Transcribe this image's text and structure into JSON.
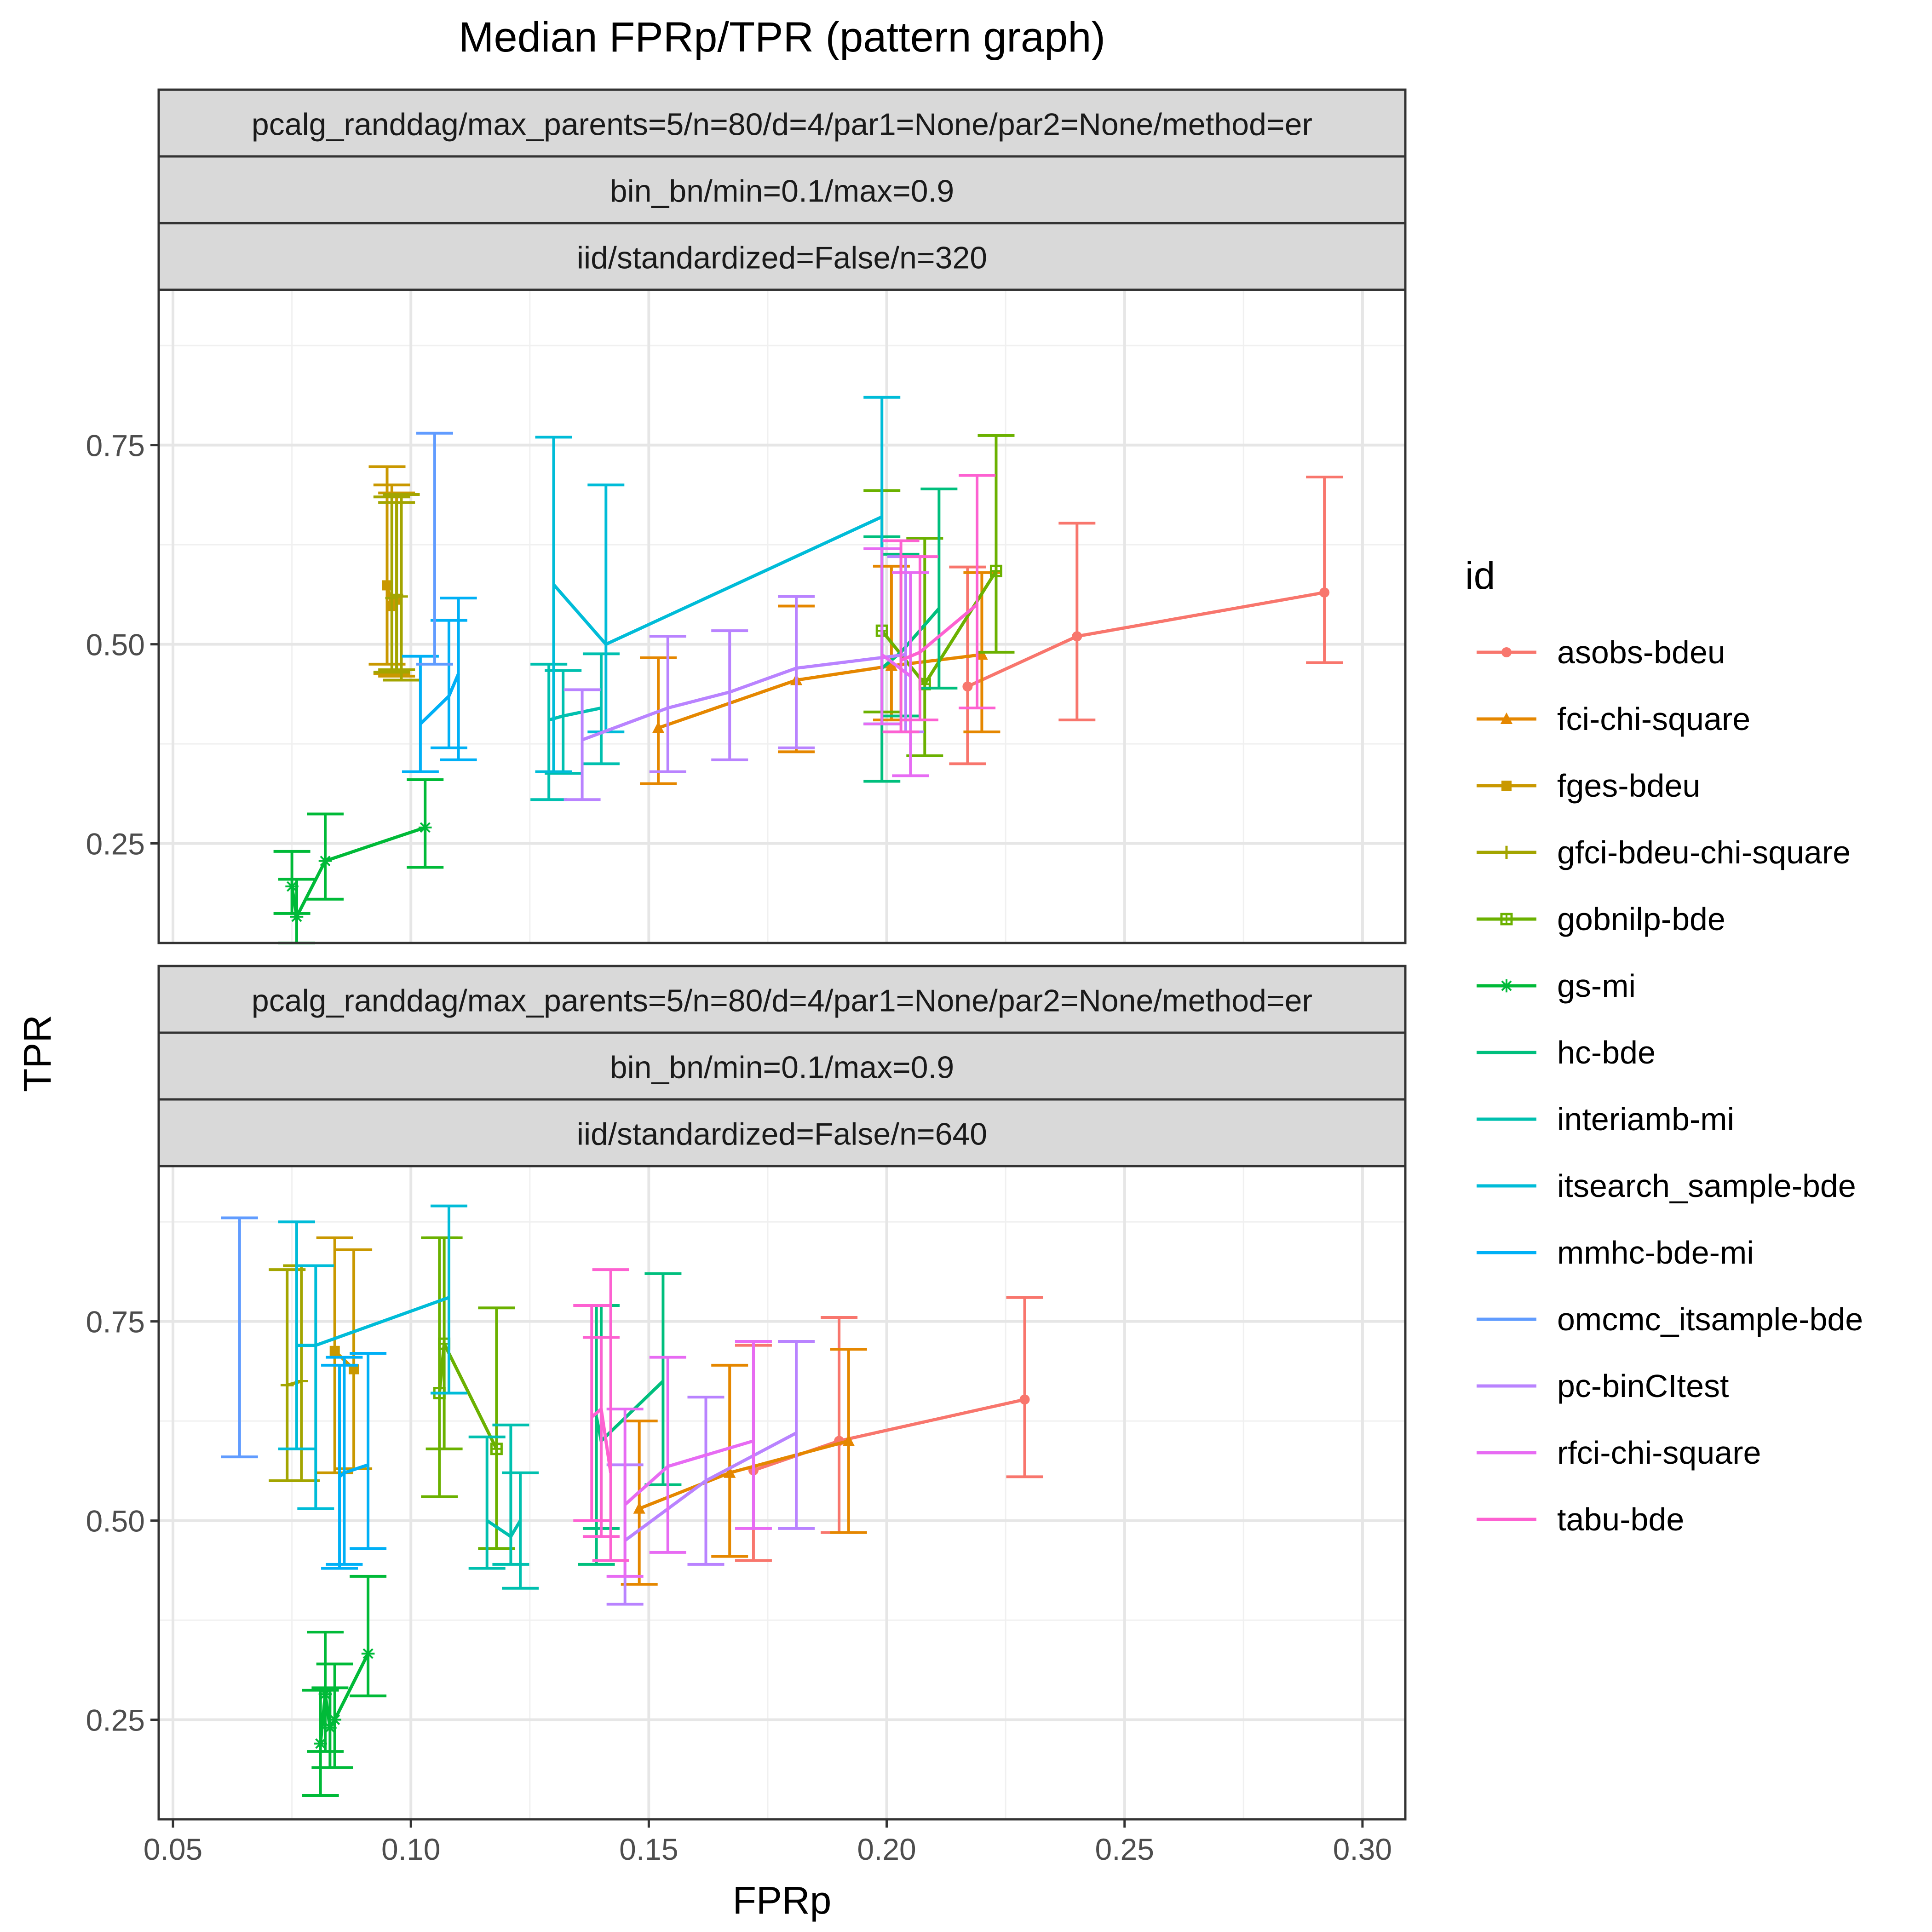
{
  "chart_data": {
    "title": "Median FPRp/TPR (pattern graph)",
    "xlabel": "FPRp",
    "ylabel": "TPR",
    "legend_title": "id",
    "legend_position": "right",
    "grid": true,
    "x_ticks": [
      "0.05",
      "0.10",
      "0.15",
      "0.20",
      "0.25",
      "0.30"
    ],
    "y_ticks": [
      "0.25",
      "0.50",
      "0.75"
    ],
    "xlim": [
      0.047,
      0.309
    ],
    "ylim": [
      0.125,
      0.945
    ],
    "series": [
      {
        "name": "asobs-bdeu",
        "color": "#F8766D",
        "marker": "circle"
      },
      {
        "name": "fci-chi-square",
        "color": "#E58700",
        "marker": "triangle"
      },
      {
        "name": "fges-bdeu",
        "color": "#C99800",
        "marker": "square"
      },
      {
        "name": "gfci-bdeu-chi-square",
        "color": "#A3A500",
        "marker": "plus"
      },
      {
        "name": "gobnilp-bde",
        "color": "#6BB100",
        "marker": "boxsquare"
      },
      {
        "name": "gs-mi",
        "color": "#00BA38",
        "marker": "asterisk"
      },
      {
        "name": "hc-bde",
        "color": "#00BF7D",
        "marker": "none"
      },
      {
        "name": "interiamb-mi",
        "color": "#00C0AF",
        "marker": "none"
      },
      {
        "name": "itsearch_sample-bde",
        "color": "#00BCD8",
        "marker": "none"
      },
      {
        "name": "mmhc-bde-mi",
        "color": "#00B0F6",
        "marker": "none"
      },
      {
        "name": "omcmc_itsample-bde",
        "color": "#619CFF",
        "marker": "none"
      },
      {
        "name": "pc-binCItest",
        "color": "#B983FF",
        "marker": "none"
      },
      {
        "name": "rfci-chi-square",
        "color": "#E76BF3",
        "marker": "none"
      },
      {
        "name": "tabu-bde",
        "color": "#FD61D1",
        "marker": "none"
      }
    ],
    "panels": [
      {
        "strips": [
          "pcalg_randdag/max_parents=5/n=80/d=4/par1=None/par2=None/method=er",
          "bin_bn/min=0.1/max=0.9",
          "iid/standardized=False/n=320"
        ],
        "lines": [
          {
            "series": 0,
            "points": [
              {
                "x": 0.217,
                "y": 0.447,
                "lo": 0.35,
                "hi": 0.597
              },
              {
                "x": 0.24,
                "y": 0.51,
                "lo": 0.405,
                "hi": 0.652
              },
              {
                "x": 0.292,
                "y": 0.565,
                "lo": 0.477,
                "hi": 0.71
              }
            ]
          },
          {
            "series": 1,
            "points": [
              {
                "x": 0.152,
                "y": 0.395,
                "lo": 0.325,
                "hi": 0.483
              },
              {
                "x": 0.181,
                "y": 0.455,
                "lo": 0.365,
                "hi": 0.548
              },
              {
                "x": 0.201,
                "y": 0.473,
                "lo": 0.405,
                "hi": 0.598
              },
              {
                "x": 0.22,
                "y": 0.487,
                "lo": 0.39,
                "hi": 0.59
              }
            ]
          },
          {
            "series": 2,
            "points": [
              {
                "x": 0.095,
                "y": 0.574,
                "lo": 0.475,
                "hi": 0.723
              },
              {
                "x": 0.096,
                "y": 0.548,
                "lo": 0.463,
                "hi": 0.7
              },
              {
                "x": 0.097,
                "y": 0.556,
                "lo": 0.46,
                "hi": 0.69
              }
            ]
          },
          {
            "series": 3,
            "points": [
              {
                "x": 0.096,
                "y": 0.558,
                "lo": 0.465,
                "hi": 0.685
              },
              {
                "x": 0.097,
                "y": 0.562,
                "lo": 0.468,
                "hi": 0.678
              },
              {
                "x": 0.098,
                "y": 0.56,
                "lo": 0.455,
                "hi": 0.688
              }
            ]
          },
          {
            "series": 4,
            "points": [
              {
                "x": 0.199,
                "y": 0.517,
                "lo": 0.415,
                "hi": 0.693
              },
              {
                "x": 0.208,
                "y": 0.45,
                "lo": 0.36,
                "hi": 0.633
              },
              {
                "x": 0.223,
                "y": 0.592,
                "lo": 0.49,
                "hi": 0.762
              }
            ]
          },
          {
            "series": 5,
            "points": [
              {
                "x": 0.075,
                "y": 0.196,
                "lo": 0.162,
                "hi": 0.24
              },
              {
                "x": 0.076,
                "y": 0.158,
                "lo": 0.125,
                "hi": 0.205
              },
              {
                "x": 0.082,
                "y": 0.228,
                "lo": 0.18,
                "hi": 0.287
              },
              {
                "x": 0.103,
                "y": 0.27,
                "lo": 0.22,
                "hi": 0.33
              }
            ]
          },
          {
            "series": 6,
            "points": [
              {
                "x": 0.199,
                "y": 0.47,
                "lo": 0.328,
                "hi": 0.635
              },
              {
                "x": 0.203,
                "y": 0.49,
                "lo": 0.41,
                "hi": 0.613
              },
              {
                "x": 0.211,
                "y": 0.545,
                "lo": 0.445,
                "hi": 0.695
              }
            ]
          },
          {
            "series": 7,
            "points": [
              {
                "x": 0.129,
                "y": 0.405,
                "lo": 0.305,
                "hi": 0.475
              },
              {
                "x": 0.132,
                "y": 0.41,
                "lo": 0.338,
                "hi": 0.467
              },
              {
                "x": 0.14,
                "y": 0.42,
                "lo": 0.35,
                "hi": 0.488
              }
            ]
          },
          {
            "series": 8,
            "points": [
              {
                "x": 0.13,
                "y": 0.575,
                "lo": 0.34,
                "hi": 0.76
              },
              {
                "x": 0.141,
                "y": 0.5,
                "lo": 0.39,
                "hi": 0.7
              },
              {
                "x": 0.199,
                "y": 0.66,
                "lo": 0.4,
                "hi": 0.81
              }
            ]
          },
          {
            "series": 9,
            "points": [
              {
                "x": 0.102,
                "y": 0.4,
                "lo": 0.34,
                "hi": 0.485
              },
              {
                "x": 0.108,
                "y": 0.435,
                "lo": 0.37,
                "hi": 0.53
              },
              {
                "x": 0.11,
                "y": 0.463,
                "lo": 0.355,
                "hi": 0.558
              }
            ]
          },
          {
            "series": 10,
            "points": [
              {
                "x": 0.105,
                "y": 0.57,
                "lo": 0.475,
                "hi": 0.765
              }
            ]
          },
          {
            "series": 11,
            "points": [
              {
                "x": 0.136,
                "y": 0.38,
                "lo": 0.305,
                "hi": 0.443
              },
              {
                "x": 0.154,
                "y": 0.42,
                "lo": 0.34,
                "hi": 0.51
              },
              {
                "x": 0.167,
                "y": 0.44,
                "lo": 0.355,
                "hi": 0.517
              },
              {
                "x": 0.181,
                "y": 0.47,
                "lo": 0.37,
                "hi": 0.56
              },
              {
                "x": 0.204,
                "y": 0.487,
                "lo": 0.39,
                "hi": 0.61
              }
            ]
          },
          {
            "series": 12,
            "points": [
              {
                "x": 0.199,
                "y": 0.487,
                "lo": 0.4,
                "hi": 0.62
              },
              {
                "x": 0.205,
                "y": 0.46,
                "lo": 0.335,
                "hi": 0.59
              }
            ]
          },
          {
            "series": 13,
            "points": [
              {
                "x": 0.203,
                "y": 0.48,
                "lo": 0.39,
                "hi": 0.63
              },
              {
                "x": 0.207,
                "y": 0.49,
                "lo": 0.405,
                "hi": 0.61
              },
              {
                "x": 0.219,
                "y": 0.55,
                "lo": 0.42,
                "hi": 0.712
              }
            ]
          }
        ]
      },
      {
        "strips": [
          "pcalg_randdag/max_parents=5/n=80/d=4/par1=None/par2=None/method=er",
          "bin_bn/min=0.1/max=0.9",
          "iid/standardized=False/n=640"
        ],
        "lines": [
          {
            "series": 0,
            "points": [
              {
                "x": 0.172,
                "y": 0.563,
                "lo": 0.45,
                "hi": 0.72
              },
              {
                "x": 0.19,
                "y": 0.6,
                "lo": 0.485,
                "hi": 0.755
              },
              {
                "x": 0.229,
                "y": 0.652,
                "lo": 0.555,
                "hi": 0.78
              }
            ]
          },
          {
            "series": 1,
            "points": [
              {
                "x": 0.148,
                "y": 0.515,
                "lo": 0.42,
                "hi": 0.625
              },
              {
                "x": 0.167,
                "y": 0.56,
                "lo": 0.455,
                "hi": 0.695
              },
              {
                "x": 0.192,
                "y": 0.6,
                "lo": 0.485,
                "hi": 0.715
              }
            ]
          },
          {
            "series": 2,
            "points": [
              {
                "x": 0.084,
                "y": 0.713,
                "lo": 0.56,
                "hi": 0.855
              },
              {
                "x": 0.088,
                "y": 0.69,
                "lo": 0.565,
                "hi": 0.84
              }
            ]
          },
          {
            "series": 3,
            "points": [
              {
                "x": 0.074,
                "y": 0.67,
                "lo": 0.55,
                "hi": 0.815
              },
              {
                "x": 0.077,
                "y": 0.675,
                "lo": 0.55,
                "hi": 0.82
              }
            ]
          },
          {
            "series": 4,
            "points": [
              {
                "x": 0.106,
                "y": 0.66,
                "lo": 0.53,
                "hi": 0.855
              },
              {
                "x": 0.107,
                "y": 0.722,
                "lo": 0.59,
                "hi": 0.855
              },
              {
                "x": 0.118,
                "y": 0.59,
                "lo": 0.465,
                "hi": 0.767
              }
            ]
          },
          {
            "series": 5,
            "points": [
              {
                "x": 0.081,
                "y": 0.22,
                "lo": 0.155,
                "hi": 0.287
              },
              {
                "x": 0.082,
                "y": 0.282,
                "lo": 0.21,
                "hi": 0.36
              },
              {
                "x": 0.083,
                "y": 0.24,
                "lo": 0.19,
                "hi": 0.29
              },
              {
                "x": 0.084,
                "y": 0.25,
                "lo": 0.19,
                "hi": 0.32
              },
              {
                "x": 0.091,
                "y": 0.333,
                "lo": 0.28,
                "hi": 0.43
              }
            ]
          },
          {
            "series": 6,
            "points": [
              {
                "x": 0.139,
                "y": 0.63,
                "lo": 0.445,
                "hi": 0.77
              },
              {
                "x": 0.14,
                "y": 0.6,
                "lo": 0.49,
                "hi": 0.77
              },
              {
                "x": 0.153,
                "y": 0.675,
                "lo": 0.545,
                "hi": 0.81
              }
            ]
          },
          {
            "series": 7,
            "points": [
              {
                "x": 0.116,
                "y": 0.5,
                "lo": 0.44,
                "hi": 0.605
              },
              {
                "x": 0.121,
                "y": 0.48,
                "lo": 0.445,
                "hi": 0.62
              },
              {
                "x": 0.123,
                "y": 0.5,
                "lo": 0.415,
                "hi": 0.56
              }
            ]
          },
          {
            "series": 8,
            "points": [
              {
                "x": 0.076,
                "y": 0.72,
                "lo": 0.59,
                "hi": 0.875
              },
              {
                "x": 0.08,
                "y": 0.72,
                "lo": 0.515,
                "hi": 0.82
              },
              {
                "x": 0.108,
                "y": 0.78,
                "lo": 0.66,
                "hi": 0.895
              }
            ]
          },
          {
            "series": 9,
            "points": [
              {
                "x": 0.085,
                "y": 0.555,
                "lo": 0.44,
                "hi": 0.695
              },
              {
                "x": 0.086,
                "y": 0.56,
                "lo": 0.445,
                "hi": 0.705
              },
              {
                "x": 0.091,
                "y": 0.57,
                "lo": 0.465,
                "hi": 0.71
              }
            ]
          },
          {
            "series": 10,
            "points": [
              {
                "x": 0.064,
                "y": 0.73,
                "lo": 0.58,
                "hi": 0.88
              }
            ]
          },
          {
            "series": 11,
            "points": [
              {
                "x": 0.145,
                "y": 0.475,
                "lo": 0.395,
                "hi": 0.57
              },
              {
                "x": 0.162,
                "y": 0.55,
                "lo": 0.445,
                "hi": 0.655
              },
              {
                "x": 0.181,
                "y": 0.61,
                "lo": 0.49,
                "hi": 0.725
              }
            ]
          },
          {
            "series": 12,
            "points": [
              {
                "x": 0.145,
                "y": 0.52,
                "lo": 0.43,
                "hi": 0.64
              },
              {
                "x": 0.154,
                "y": 0.568,
                "lo": 0.46,
                "hi": 0.705
              },
              {
                "x": 0.172,
                "y": 0.6,
                "lo": 0.49,
                "hi": 0.725
              }
            ]
          },
          {
            "series": 13,
            "points": [
              {
                "x": 0.138,
                "y": 0.63,
                "lo": 0.5,
                "hi": 0.77
              },
              {
                "x": 0.14,
                "y": 0.64,
                "lo": 0.48,
                "hi": 0.73
              },
              {
                "x": 0.142,
                "y": 0.56,
                "lo": 0.45,
                "hi": 0.815
              }
            ]
          }
        ]
      }
    ]
  }
}
